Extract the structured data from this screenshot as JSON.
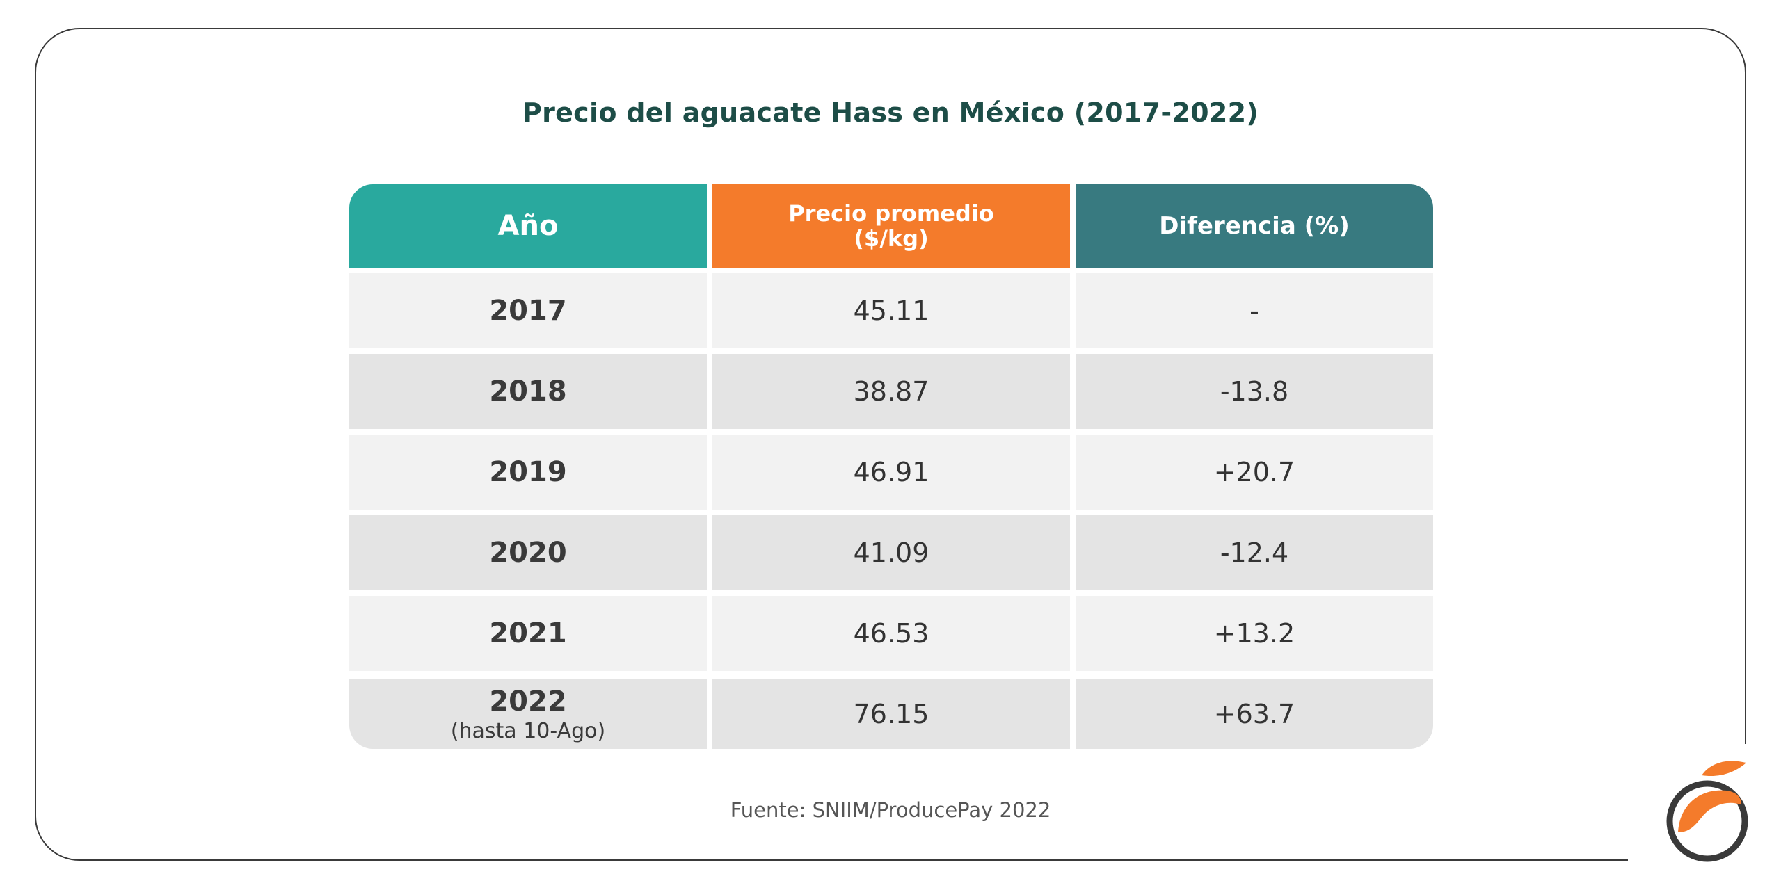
{
  "title": "Precio del aguacate Hass en México (2017-2022)",
  "source": "Fuente: SNIIM/ProducePay 2022",
  "colors": {
    "header_year": "#29a99e",
    "header_price": "#f47b2b",
    "header_diff": "#387a80",
    "row_light": "#f2f2f2",
    "row_dark": "#e4e4e4",
    "title": "#1d4d47",
    "logo_orange": "#f47b2b",
    "logo_ring": "#3a3a3a"
  },
  "logo": {
    "icon": "orange-fruit-logo-icon"
  },
  "chart_data": {
    "type": "table",
    "title": "Precio del aguacate Hass en México (2017-2022)",
    "columns": [
      "Año",
      "Precio promedio ($/kg)",
      "Diferencia (%)"
    ],
    "header": {
      "year": "Año",
      "price_line1": "Precio promedio",
      "price_line2": "($/kg)",
      "diff": "Diferencia (%)"
    },
    "rows": [
      {
        "year": "2017",
        "note": "",
        "price": "45.11",
        "diff": "-"
      },
      {
        "year": "2018",
        "note": "",
        "price": "38.87",
        "diff": "-13.8"
      },
      {
        "year": "2019",
        "note": "",
        "price": "46.91",
        "diff": "+20.7"
      },
      {
        "year": "2020",
        "note": "",
        "price": "41.09",
        "diff": "-12.4"
      },
      {
        "year": "2021",
        "note": "",
        "price": "46.53",
        "diff": "+13.2"
      },
      {
        "year": "2022",
        "note": "(hasta 10-Ago)",
        "price": "76.15",
        "diff": "+63.7"
      }
    ]
  }
}
